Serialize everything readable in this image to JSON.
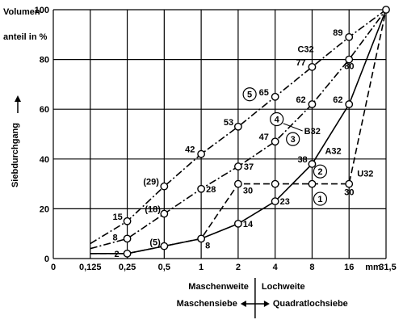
{
  "chart_data": {
    "type": "line",
    "title": "",
    "ylabel_top": "Volumen-",
    "ylabel_bottom": "anteil in %",
    "ylabel_side": "Siebdurchgang",
    "ylim": [
      0,
      100
    ],
    "y_ticks": [
      0,
      20,
      40,
      60,
      80,
      100
    ],
    "x_categories": [
      "0",
      "0,125",
      "0,25",
      "0,5",
      "1",
      "2",
      "4",
      "8",
      "16",
      "31,5"
    ],
    "x_unit": "mm",
    "grid": true,
    "series": [
      {
        "name": "A32",
        "style": "solid",
        "x": [
          "0,125",
          "0,25",
          "0,5",
          "1",
          "2",
          "4",
          "8",
          "16",
          "31,5"
        ],
        "y": [
          2,
          2,
          5,
          8,
          14,
          23,
          38,
          62,
          100
        ]
      },
      {
        "name": "B32",
        "style": "dashdot",
        "x": [
          "0,125",
          "0,25",
          "0,5",
          "1",
          "2",
          "4",
          "8",
          "16",
          "31,5"
        ],
        "y": [
          4,
          8,
          18,
          28,
          37,
          47,
          62,
          80,
          100
        ]
      },
      {
        "name": "C32",
        "style": "dashdot",
        "x": [
          "0,125",
          "0,25",
          "0,5",
          "1",
          "2",
          "4",
          "8",
          "16",
          "31,5"
        ],
        "y": [
          6,
          15,
          29,
          42,
          53,
          65,
          77,
          89,
          100
        ]
      },
      {
        "name": "U32",
        "style": "dashed",
        "x": [
          "0,125",
          "0,25",
          "0,5",
          "1",
          "2",
          "4",
          "8",
          "16",
          "31,5"
        ],
        "y": [
          2,
          2,
          5,
          8,
          30,
          30,
          30,
          30,
          100
        ]
      }
    ],
    "point_labels": [
      {
        "text": "2",
        "x": "0,25",
        "y": 2
      },
      {
        "text": "(5)",
        "x": "0,5",
        "y": 5
      },
      {
        "text": "8",
        "x": "1",
        "y": 8
      },
      {
        "text": "14",
        "x": "2",
        "y": 14
      },
      {
        "text": "23",
        "x": "4",
        "y": 23
      },
      {
        "text": "38",
        "x": "8",
        "y": 38
      },
      {
        "text": "62",
        "x": "16",
        "y": 62
      },
      {
        "text": "8",
        "x": "0,25",
        "y": 8
      },
      {
        "text": "(18)",
        "x": "0,5",
        "y": 18
      },
      {
        "text": "28",
        "x": "1",
        "y": 28
      },
      {
        "text": "37",
        "x": "2",
        "y": 37
      },
      {
        "text": "47",
        "x": "4",
        "y": 47
      },
      {
        "text": "62",
        "x": "8",
        "y": 62
      },
      {
        "text": "80",
        "x": "16",
        "y": 80
      },
      {
        "text": "15",
        "x": "0,25",
        "y": 15
      },
      {
        "text": "(29)",
        "x": "0,5",
        "y": 29
      },
      {
        "text": "42",
        "x": "1",
        "y": 42
      },
      {
        "text": "53",
        "x": "2",
        "y": 53
      },
      {
        "text": "65",
        "x": "4",
        "y": 65
      },
      {
        "text": "77",
        "x": "8",
        "y": 77
      },
      {
        "text": "89",
        "x": "16",
        "y": 89
      },
      {
        "text": "30",
        "x": "2",
        "y": 30
      },
      {
        "text": "30",
        "x": "16",
        "y": 30
      }
    ],
    "zone_labels": [
      "1",
      "2",
      "3",
      "4",
      "5"
    ],
    "xlabel_left": "Maschenweite",
    "xlabel_right": "Lochweite",
    "sieve_left": "Maschensiebe",
    "sieve_right": "Quadratlochsiebe"
  }
}
